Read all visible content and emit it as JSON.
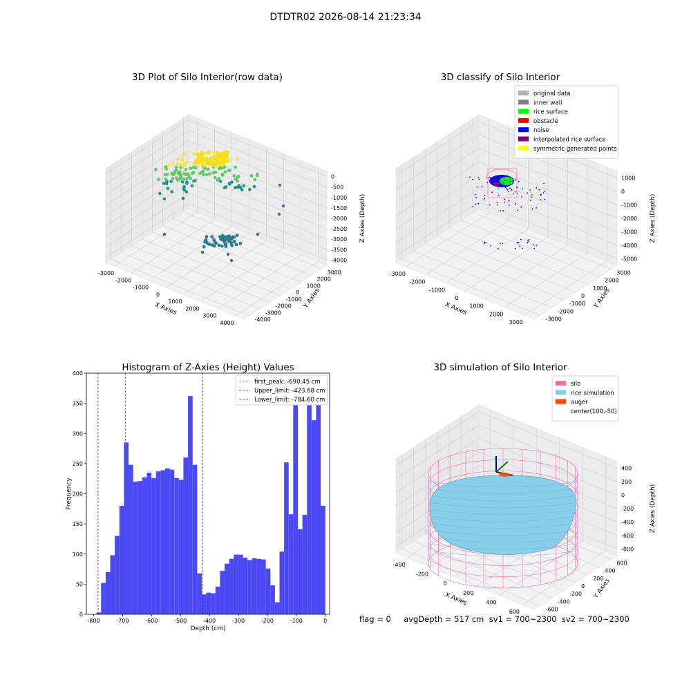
{
  "suptitle": "DTDTR02 2026-08-14 21:23:34",
  "footer": "flag = 0     avgDepth = 517 cm  sv1 = 700~2300  sv2 = 700~2300",
  "colors": {
    "hist_bar": "#4a4af5",
    "first_peak": "#e03030",
    "limits": "#2020d0",
    "silo": "#ff69b4",
    "rice_sim": "#87ceeb",
    "auger": "#ff4500"
  },
  "chart_data": [
    {
      "type": "scatter",
      "subtype": "scatter3d",
      "title": "3D Plot of Silo Interior(row data)",
      "xlabel": "X Axies",
      "ylabel": "Y Axies",
      "zlabel": "Z Axies (Depth)",
      "x_ticks": [
        "-3000",
        "-2000",
        "-1000",
        "0",
        "1000",
        "2000",
        "3000",
        "4000"
      ],
      "y_ticks": [
        "-4000",
        "-3000",
        "-2000",
        "-1000",
        "0",
        "1000",
        "2000",
        "3000"
      ],
      "z_ticks": [
        "0",
        "-500",
        "-1000",
        "-1500",
        "-2000",
        "-2500",
        "-3000",
        "-3500",
        "-4000"
      ],
      "colormap": "viridis"
    },
    {
      "type": "scatter",
      "subtype": "scatter3d",
      "title": "3D classify of Silo Interior",
      "xlabel": "X Axies",
      "ylabel": "Y Axies",
      "zlabel": "Z Axies (Depth)",
      "x_ticks": [
        "-3000",
        "-2000",
        "-1000",
        "0",
        "1000",
        "2000",
        "3000"
      ],
      "y_ticks": [
        "-3000",
        "-2000",
        "-1000",
        "0",
        "1000",
        "2000",
        "3000"
      ],
      "z_ticks": [
        "1000",
        "0",
        "-1000",
        "-2000",
        "-3000",
        "-4000",
        "-5000"
      ],
      "legend": [
        {
          "label": "original data",
          "color": "#b0b0b0"
        },
        {
          "label": "inner wall",
          "color": "#808080"
        },
        {
          "label": "rice surface",
          "color": "#00ff00"
        },
        {
          "label": "obstacle",
          "color": "#ff0000"
        },
        {
          "label": "noise",
          "color": "#0000ff"
        },
        {
          "label": "interpolated rice surface",
          "color": "#800080"
        },
        {
          "label": "symmetric generated points",
          "color": "#ffff00"
        }
      ],
      "legend_placement": "top-right"
    },
    {
      "type": "bar",
      "subtype": "histogram",
      "title": "Histogram of Z-Axies (Height) Values",
      "xlabel": "Depth (cm)",
      "ylabel": "Frequency",
      "xlim": [
        -825,
        15
      ],
      "ylim": [
        0,
        400
      ],
      "x_ticks": [
        -800,
        -700,
        -600,
        -500,
        -400,
        -300,
        -200,
        -100,
        0
      ],
      "y_ticks": [
        0,
        50,
        100,
        150,
        200,
        250,
        300,
        350,
        400
      ],
      "bin_start": -790,
      "bin_width": 15.8,
      "values": [
        3,
        52,
        70,
        98,
        130,
        180,
        285,
        248,
        220,
        221,
        227,
        235,
        226,
        237,
        239,
        242,
        240,
        226,
        223,
        260,
        362,
        248,
        68,
        33,
        36,
        35,
        46,
        72,
        84,
        92,
        99,
        99,
        94,
        90,
        93,
        92,
        91,
        76,
        48,
        20,
        104,
        252,
        166,
        360,
        141,
        165,
        375,
        322,
        375,
        180
      ],
      "vlines": [
        {
          "x": -690.45,
          "label": "first_peak: -690.45 cm",
          "color": "#e03030"
        },
        {
          "x": -423.68,
          "label": "Upper_limit: -423.68 cm",
          "color": "#2020d0"
        },
        {
          "x": -784.6,
          "label": "Lower_limit: -784.60 cm",
          "color": "#2020d0"
        }
      ],
      "legend_placement": "top-right",
      "grid": false
    },
    {
      "type": "area",
      "subtype": "surface3d",
      "title": "3D simulation of Silo Interior",
      "xlabel": "X Axies",
      "ylabel": "Y Axies",
      "zlabel": "Z Axies (Depth)",
      "x_ticks": [
        "-400",
        "-200",
        "0",
        "200",
        "400",
        "600"
      ],
      "y_ticks": [
        "-600",
        "-400",
        "-200",
        "0",
        "200",
        "400",
        "600"
      ],
      "z_ticks": [
        "400",
        "200",
        "0",
        "-200",
        "-400",
        "-600",
        "-800"
      ],
      "legend": [
        {
          "label": "silo",
          "color": "#ff69b4"
        },
        {
          "label": "rice simulation",
          "color": "#87ceeb"
        },
        {
          "label": "auger",
          "color": "#ff4500"
        },
        {
          "label": "center(100,-50)",
          "color": ""
        }
      ],
      "legend_placement": "top-right"
    }
  ]
}
